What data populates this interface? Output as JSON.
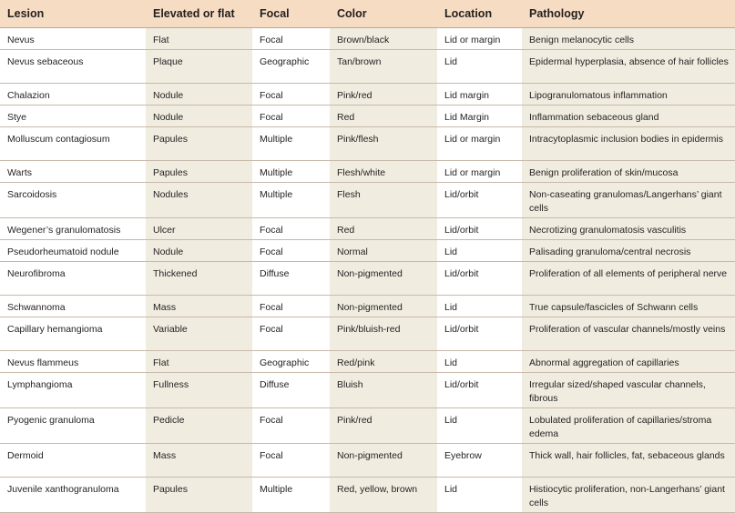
{
  "headers": [
    "Lesion",
    "Elevated or flat",
    "Focal",
    "Color",
    "Location",
    "Pathology"
  ],
  "rows": [
    [
      "Nevus",
      "Flat",
      "Focal",
      "Brown/black",
      "Lid or margin",
      "Benign melanocytic cells"
    ],
    [
      "Nevus sebaceous",
      "Plaque",
      "Geographic",
      "Tan/brown",
      "Lid",
      "Epidermal hyperplasia, absence of hair follicles"
    ],
    [
      "Chalazion",
      "Nodule",
      "Focal",
      "Pink/red",
      "Lid margin",
      "Lipogranulomatous inflammation"
    ],
    [
      "Stye",
      "Nodule",
      "Focal",
      "Red",
      "Lid Margin",
      "Inflammation sebaceous gland"
    ],
    [
      "Molluscum contagiosum",
      "Papules",
      "Multiple",
      "Pink/flesh",
      "Lid or margin",
      "Intracytoplasmic inclusion bodies in epidermis"
    ],
    [
      "Warts",
      "Papules",
      "Multiple",
      "Flesh/white",
      "Lid or margin",
      "Benign proliferation of skin/mucosa"
    ],
    [
      "Sarcoidosis",
      "Nodules",
      "Multiple",
      "Flesh",
      "Lid/orbit",
      "Non-caseating granulomas/Langerhans’ giant cells"
    ],
    [
      "Wegener’s granulomatosis",
      "Ulcer",
      "Focal",
      "Red",
      "Lid/orbit",
      "Necrotizing granulomatosis vasculitis"
    ],
    [
      "Pseudorheumatoid nodule",
      "Nodule",
      "Focal",
      "Normal",
      "Lid",
      "Palisading granuloma/central necrosis"
    ],
    [
      "Neurofibroma",
      "Thickened",
      "Diffuse",
      "Non-pigmented",
      "Lid/orbit",
      "Proliferation of all elements of peripheral nerve"
    ],
    [
      "Schwannoma",
      "Mass",
      "Focal",
      "Non-pigmented",
      "Lid",
      "True capsule/fascicles of Schwann cells"
    ],
    [
      "Capillary hemangioma",
      "Variable",
      "Focal",
      "Pink/bluish-red",
      "Lid/orbit",
      "Proliferation of vascular channels/mostly veins"
    ],
    [
      "Nevus flammeus",
      "Flat",
      "Geographic",
      "Red/pink",
      "Lid",
      "Abnormal aggregation of capillaries"
    ],
    [
      "Lymphangioma",
      "Fullness",
      "Diffuse",
      "Bluish",
      "Lid/orbit",
      "Irregular sized/shaped vascular channels, fibrous"
    ],
    [
      "Pyogenic granuloma",
      "Pedicle",
      "Focal",
      "Pink/red",
      "Lid",
      "Lobulated proliferation of capillaries/stroma edema"
    ],
    [
      "Dermoid",
      "Mass",
      "Focal",
      "Non-pigmented",
      "Eyebrow",
      "Thick wall, hair follicles, fat, sebaceous glands"
    ],
    [
      "Juvenile xanthogranuloma",
      "Papules",
      "Multiple",
      "Red, yellow, brown",
      "Lid",
      "Histiocytic proliferation, non-Langerhans’ giant cells"
    ]
  ]
}
